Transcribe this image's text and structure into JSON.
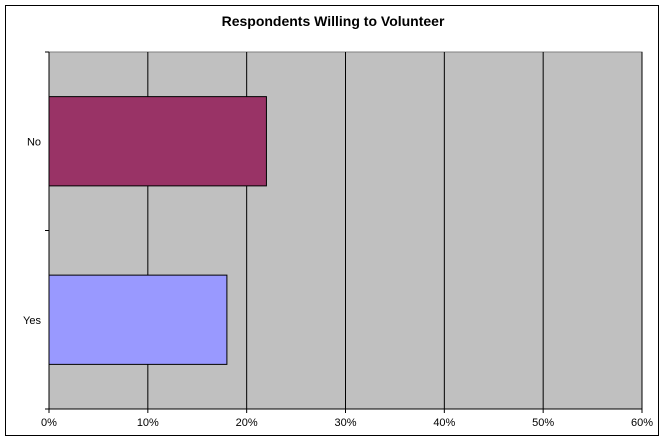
{
  "chart_data": {
    "type": "bar",
    "orientation": "horizontal",
    "title": "Respondents Willing to Volunteer",
    "categories": [
      "Yes",
      "No"
    ],
    "values": [
      18,
      22
    ],
    "xlim": [
      0,
      60
    ],
    "x_ticks": [
      "0%",
      "10%",
      "20%",
      "30%",
      "40%",
      "50%",
      "60%"
    ],
    "grid": true,
    "bar_colors": [
      "#9999ff",
      "#993366"
    ],
    "plot_background": "#c0c0c0"
  }
}
